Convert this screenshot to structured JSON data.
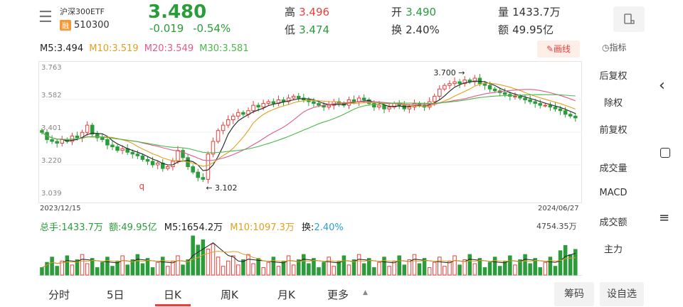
{
  "header": {
    "menu_icon": "hamburger-icon",
    "name": "沪深300ETF",
    "badge": "融",
    "code": "510300",
    "price": "3.480",
    "change": "-0.019",
    "change_pct": "-0.54%",
    "high_label": "高",
    "high": "3.496",
    "low_label": "低",
    "low": "3.474",
    "open_label": "开",
    "open": "3.490",
    "turnover_label": "换",
    "turnover": "2.40%",
    "volume_label": "量",
    "volume": "1433.7万",
    "amount_label": "额",
    "amount": "49.95亿",
    "switch_icon": "landscape-rotate-icon"
  },
  "ma": {
    "m5": "M5:3.494",
    "m10": "M10:3.519",
    "m20": "M20:3.549",
    "m30": "M30:3.581",
    "colors": {
      "m5": "#222222",
      "m10": "#e0a020",
      "m20": "#e05a8a",
      "m30": "#4cb84c"
    }
  },
  "draw_button": "画线",
  "indicator_button": "指标",
  "price_axis": [
    "3.763",
    "3.582",
    "3.401",
    "3.220",
    "3.039"
  ],
  "date_start": "2023/12/15",
  "date_end": "2024/06/27",
  "annotation_high": "3.700",
  "annotation_low": "3.102",
  "annotation_marker": "q",
  "volume_info": {
    "total": "总手:1433.7万",
    "amount": "额:49.95亿",
    "m5": "M5:1654.2万",
    "m10": "M10:1097.3万",
    "turnover_label": "换:",
    "turnover_value": "2.40%",
    "max": "4754.35万"
  },
  "side_menu": {
    "adj": [
      "后复权",
      "除权",
      "前复权"
    ],
    "indicators": [
      "成交量",
      "MACD",
      "成交额",
      "主力"
    ]
  },
  "tabs": [
    "分时",
    "5日",
    "日K",
    "周K",
    "月K",
    "更多"
  ],
  "active_tab": "日K",
  "bottom_buttons": [
    "筹码",
    "设自选"
  ],
  "nav": {
    "back_icon": "chevron-left-icon",
    "home_icon": "square-icon",
    "menu_icon": "menu-lines-icon"
  },
  "chart_data": {
    "type": "candlestick",
    "ylim": [
      3.039,
      3.763
    ],
    "x_range": [
      "2023/12/15",
      "2024/06/27"
    ],
    "close_approx": [
      3.4,
      3.36,
      3.35,
      3.34,
      3.36,
      3.35,
      3.38,
      3.37,
      3.4,
      3.44,
      3.39,
      3.37,
      3.36,
      3.33,
      3.32,
      3.3,
      3.31,
      3.29,
      3.28,
      3.27,
      3.25,
      3.24,
      3.22,
      3.23,
      3.2,
      3.21,
      3.24,
      3.3,
      3.26,
      3.21,
      3.18,
      3.15,
      3.14,
      3.28,
      3.35,
      3.41,
      3.44,
      3.47,
      3.49,
      3.51,
      3.5,
      3.52,
      3.55,
      3.54,
      3.56,
      3.57,
      3.56,
      3.58,
      3.57,
      3.59,
      3.6,
      3.59,
      3.58,
      3.57,
      3.56,
      3.55,
      3.54,
      3.55,
      3.57,
      3.56,
      3.55,
      3.58,
      3.57,
      3.59,
      3.58,
      3.56,
      3.54,
      3.55,
      3.53,
      3.54,
      3.56,
      3.55,
      3.53,
      3.54,
      3.56,
      3.55,
      3.54,
      3.57,
      3.6,
      3.64,
      3.66,
      3.67,
      3.68,
      3.67,
      3.69,
      3.68,
      3.7,
      3.67,
      3.66,
      3.64,
      3.63,
      3.62,
      3.61,
      3.6,
      3.6,
      3.59,
      3.58,
      3.57,
      3.56,
      3.55,
      3.55,
      3.54,
      3.53,
      3.52,
      3.5,
      3.49,
      3.48
    ],
    "high": 3.7,
    "low": 3.102
  }
}
